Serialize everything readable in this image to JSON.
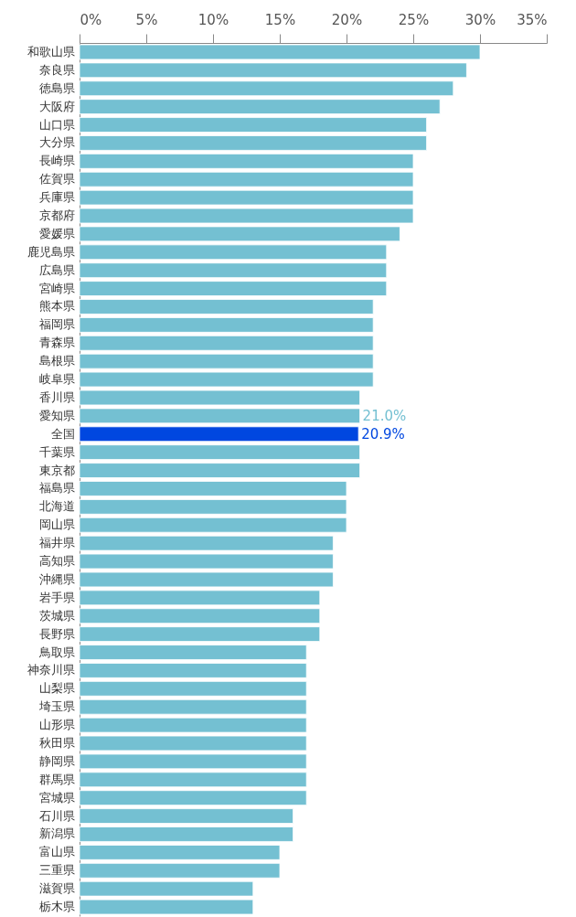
{
  "chart_data": {
    "type": "bar",
    "orientation": "horizontal",
    "categories": [
      "和歌山県",
      "奈良県",
      "徳島県",
      "大阪府",
      "山口県",
      "大分県",
      "長崎県",
      "佐賀県",
      "兵庫県",
      "京都府",
      "愛媛県",
      "鹿児島県",
      "広島県",
      "宮崎県",
      "熊本県",
      "福岡県",
      "青森県",
      "島根県",
      "岐阜県",
      "香川県",
      "愛知県",
      "全国",
      "千葉県",
      "東京都",
      "福島県",
      "北海道",
      "岡山県",
      "福井県",
      "高知県",
      "沖縄県",
      "岩手県",
      "茨城県",
      "長野県",
      "鳥取県",
      "神奈川県",
      "山梨県",
      "埼玉県",
      "山形県",
      "秋田県",
      "静岡県",
      "群馬県",
      "宮城県",
      "石川県",
      "新潟県",
      "富山県",
      "三重県",
      "滋賀県",
      "栃木県"
    ],
    "values": [
      30,
      29,
      28,
      27,
      26,
      26,
      25,
      25,
      25,
      25,
      24,
      23,
      23,
      23,
      22,
      22,
      22,
      22,
      22,
      21,
      21.0,
      20.9,
      21,
      21,
      20,
      20,
      20,
      19,
      19,
      19,
      18,
      18,
      18,
      17,
      17,
      17,
      17,
      17,
      17,
      17,
      17,
      17,
      16,
      16,
      15,
      15,
      13,
      13
    ],
    "colors": [
      "#74c0d2",
      "#74c0d2",
      "#74c0d2",
      "#74c0d2",
      "#74c0d2",
      "#74c0d2",
      "#74c0d2",
      "#74c0d2",
      "#74c0d2",
      "#74c0d2",
      "#74c0d2",
      "#74c0d2",
      "#74c0d2",
      "#74c0d2",
      "#74c0d2",
      "#74c0d2",
      "#74c0d2",
      "#74c0d2",
      "#74c0d2",
      "#74c0d2",
      "#74c0d2",
      "#0047e0",
      "#74c0d2",
      "#74c0d2",
      "#74c0d2",
      "#74c0d2",
      "#74c0d2",
      "#74c0d2",
      "#74c0d2",
      "#74c0d2",
      "#74c0d2",
      "#74c0d2",
      "#74c0d2",
      "#74c0d2",
      "#74c0d2",
      "#74c0d2",
      "#74c0d2",
      "#74c0d2",
      "#74c0d2",
      "#74c0d2",
      "#74c0d2",
      "#74c0d2",
      "#74c0d2",
      "#74c0d2",
      "#74c0d2",
      "#74c0d2",
      "#74c0d2",
      "#74c0d2"
    ],
    "value_labels": [
      null,
      null,
      null,
      null,
      null,
      null,
      null,
      null,
      null,
      null,
      null,
      null,
      null,
      null,
      null,
      null,
      null,
      null,
      null,
      null,
      "21.0%",
      "20.9%",
      null,
      null,
      null,
      null,
      null,
      null,
      null,
      null,
      null,
      null,
      null,
      null,
      null,
      null,
      null,
      null,
      null,
      null,
      null,
      null,
      null,
      null,
      null,
      null,
      null,
      null
    ],
    "xlim": [
      0,
      35
    ],
    "xticks": [
      {
        "value": 0,
        "label": "0%"
      },
      {
        "value": 5,
        "label": "5%"
      },
      {
        "value": 10,
        "label": "10%"
      },
      {
        "value": 15,
        "label": "15%"
      },
      {
        "value": 20,
        "label": "20%"
      },
      {
        "value": 25,
        "label": "25%"
      },
      {
        "value": 30,
        "label": "30%"
      },
      {
        "value": 35,
        "label": "35%"
      }
    ],
    "grid": false
  }
}
